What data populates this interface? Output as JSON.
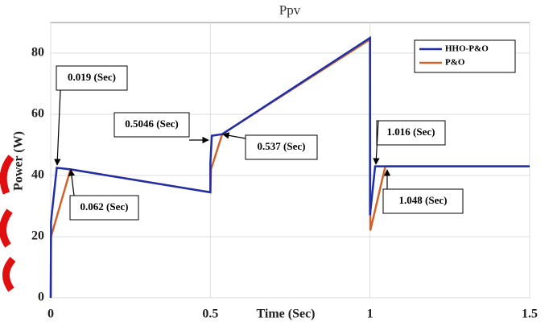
{
  "chart_data": {
    "type": "line",
    "title": "Ppv",
    "x_label": "Time (Sec)",
    "y_label": "Power (W)",
    "xlim": [
      0,
      1.5
    ],
    "xticks": [
      0,
      0.5,
      1,
      1.5
    ],
    "ylim": [
      0,
      90
    ],
    "yticks": [
      0,
      20,
      40,
      60,
      80
    ],
    "grid": true,
    "legend": "upper right",
    "series": [
      {
        "name": "HHO-P&O",
        "color": "#1f2fa8",
        "x": [
          0,
          0.001,
          0.019,
          0.062,
          0.5,
          0.5,
          0.5046,
          0.537,
          1.0,
          1.0,
          1.016,
          1.5
        ],
        "values": [
          0,
          25,
          42.5,
          42,
          34.5,
          44,
          53,
          53.5,
          85,
          27,
          43,
          43
        ]
      },
      {
        "name": "P&O",
        "color": "#d0632a",
        "x": [
          0,
          0.001,
          0.062,
          0.5,
          0.502,
          0.537,
          1.0,
          1.001,
          1.048,
          1.5
        ],
        "values": [
          0,
          20,
          42,
          34.5,
          42,
          53.5,
          84.5,
          22,
          43,
          43
        ]
      }
    ],
    "annotations": [
      "0.019 (Sec)",
      "0.062 (Sec)",
      "0.5046 (Sec)",
      "0.537 (Sec)",
      "1.016 (Sec)",
      "1.048 (Sec)"
    ]
  }
}
